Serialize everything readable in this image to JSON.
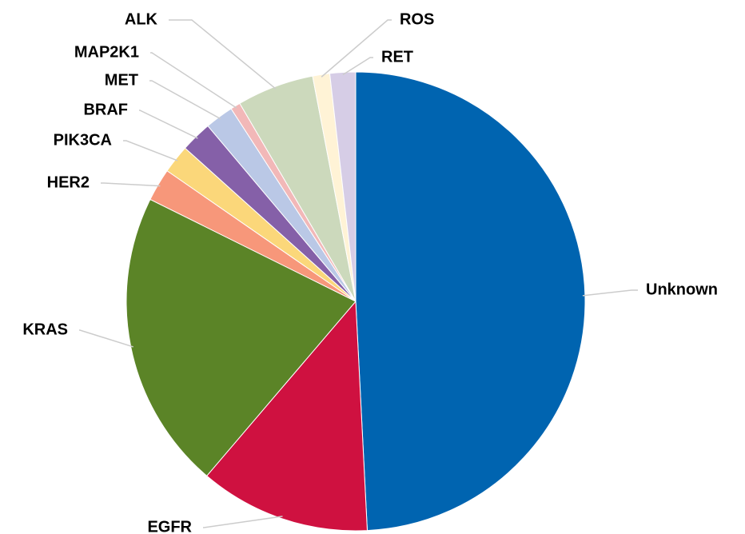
{
  "chart_data": {
    "type": "pie",
    "categories": [
      "Unknown",
      "EGFR",
      "KRAS",
      "HER2",
      "PIK3CA",
      "BRAF",
      "MET",
      "MAP2K1",
      "ALK",
      "ROS",
      "RET"
    ],
    "values": [
      49,
      12,
      21,
      2.3,
      2,
      2.2,
      2,
      0.7,
      5.4,
      1.2,
      1.8
    ],
    "colors": [
      "#0064b0",
      "#cf1140",
      "#5b8427",
      "#f7977a",
      "#fbd77a",
      "#8560a8",
      "#bac8e6",
      "#f2b8b8",
      "#ccd9bc",
      "#fff3d6",
      "#d6cde6"
    ]
  }
}
